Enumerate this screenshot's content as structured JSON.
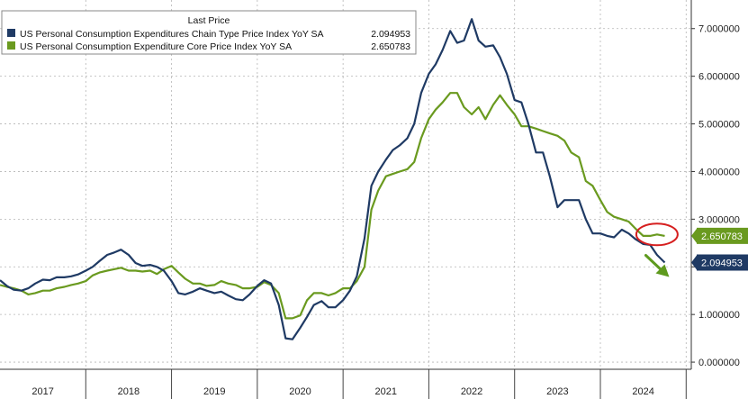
{
  "chart_data": {
    "type": "line",
    "legend": {
      "header": "Last Price",
      "placement": "top-left"
    },
    "series": [
      {
        "name": "US Personal Consumption Expenditures Chain Type Price Index YoY SA",
        "last_value": "2.094953",
        "color": "#1f3a64",
        "points": [
          [
            2016.92,
            1.72
          ],
          [
            2017.0,
            1.6
          ],
          [
            2017.08,
            1.52
          ],
          [
            2017.17,
            1.5
          ],
          [
            2017.25,
            1.55
          ],
          [
            2017.33,
            1.65
          ],
          [
            2017.42,
            1.73
          ],
          [
            2017.5,
            1.72
          ],
          [
            2017.58,
            1.78
          ],
          [
            2017.67,
            1.78
          ],
          [
            2017.75,
            1.8
          ],
          [
            2017.83,
            1.84
          ],
          [
            2017.92,
            1.92
          ],
          [
            2018.0,
            2.0
          ],
          [
            2018.08,
            2.12
          ],
          [
            2018.17,
            2.25
          ],
          [
            2018.25,
            2.3
          ],
          [
            2018.33,
            2.36
          ],
          [
            2018.42,
            2.25
          ],
          [
            2018.5,
            2.08
          ],
          [
            2018.58,
            2.02
          ],
          [
            2018.67,
            2.04
          ],
          [
            2018.75,
            2.0
          ],
          [
            2018.83,
            1.92
          ],
          [
            2018.92,
            1.7
          ],
          [
            2019.0,
            1.45
          ],
          [
            2019.08,
            1.42
          ],
          [
            2019.17,
            1.48
          ],
          [
            2019.25,
            1.55
          ],
          [
            2019.33,
            1.5
          ],
          [
            2019.42,
            1.45
          ],
          [
            2019.5,
            1.48
          ],
          [
            2019.58,
            1.4
          ],
          [
            2019.67,
            1.32
          ],
          [
            2019.75,
            1.3
          ],
          [
            2019.83,
            1.42
          ],
          [
            2019.92,
            1.6
          ],
          [
            2020.0,
            1.72
          ],
          [
            2020.08,
            1.65
          ],
          [
            2020.17,
            1.2
          ],
          [
            2020.25,
            0.5
          ],
          [
            2020.33,
            0.48
          ],
          [
            2020.42,
            0.72
          ],
          [
            2020.5,
            0.95
          ],
          [
            2020.58,
            1.2
          ],
          [
            2020.67,
            1.28
          ],
          [
            2020.75,
            1.15
          ],
          [
            2020.83,
            1.15
          ],
          [
            2020.92,
            1.3
          ],
          [
            2021.0,
            1.5
          ],
          [
            2021.08,
            1.8
          ],
          [
            2021.17,
            2.6
          ],
          [
            2021.25,
            3.7
          ],
          [
            2021.33,
            4.0
          ],
          [
            2021.42,
            4.25
          ],
          [
            2021.5,
            4.45
          ],
          [
            2021.58,
            4.55
          ],
          [
            2021.67,
            4.7
          ],
          [
            2021.75,
            5.0
          ],
          [
            2021.83,
            5.65
          ],
          [
            2021.92,
            6.05
          ],
          [
            2022.0,
            6.25
          ],
          [
            2022.08,
            6.55
          ],
          [
            2022.17,
            6.95
          ],
          [
            2022.25,
            6.7
          ],
          [
            2022.33,
            6.75
          ],
          [
            2022.42,
            7.2
          ],
          [
            2022.5,
            6.75
          ],
          [
            2022.58,
            6.62
          ],
          [
            2022.67,
            6.65
          ],
          [
            2022.75,
            6.4
          ],
          [
            2022.83,
            6.05
          ],
          [
            2022.92,
            5.5
          ],
          [
            2023.0,
            5.45
          ],
          [
            2023.08,
            5.0
          ],
          [
            2023.17,
            4.4
          ],
          [
            2023.25,
            4.4
          ],
          [
            2023.33,
            3.9
          ],
          [
            2023.42,
            3.25
          ],
          [
            2023.5,
            3.4
          ],
          [
            2023.58,
            3.4
          ],
          [
            2023.67,
            3.4
          ],
          [
            2023.75,
            3.0
          ],
          [
            2023.83,
            2.7
          ],
          [
            2023.92,
            2.7
          ],
          [
            2024.0,
            2.65
          ],
          [
            2024.08,
            2.62
          ],
          [
            2024.17,
            2.78
          ],
          [
            2024.25,
            2.7
          ],
          [
            2024.33,
            2.58
          ],
          [
            2024.42,
            2.48
          ],
          [
            2024.5,
            2.46
          ],
          [
            2024.58,
            2.25
          ],
          [
            2024.67,
            2.09
          ]
        ]
      },
      {
        "name": "US Personal Consumption Expenditure Core Price Index YoY SA",
        "last_value": "2.650783",
        "color": "#6a9a1f",
        "points": [
          [
            2016.92,
            1.62
          ],
          [
            2017.0,
            1.58
          ],
          [
            2017.08,
            1.55
          ],
          [
            2017.17,
            1.5
          ],
          [
            2017.25,
            1.42
          ],
          [
            2017.33,
            1.45
          ],
          [
            2017.42,
            1.5
          ],
          [
            2017.5,
            1.5
          ],
          [
            2017.58,
            1.55
          ],
          [
            2017.67,
            1.58
          ],
          [
            2017.75,
            1.62
          ],
          [
            2017.83,
            1.65
          ],
          [
            2017.92,
            1.7
          ],
          [
            2018.0,
            1.82
          ],
          [
            2018.08,
            1.88
          ],
          [
            2018.17,
            1.92
          ],
          [
            2018.25,
            1.95
          ],
          [
            2018.33,
            1.98
          ],
          [
            2018.42,
            1.92
          ],
          [
            2018.5,
            1.92
          ],
          [
            2018.58,
            1.9
          ],
          [
            2018.67,
            1.92
          ],
          [
            2018.75,
            1.85
          ],
          [
            2018.83,
            1.95
          ],
          [
            2018.92,
            2.02
          ],
          [
            2019.0,
            1.88
          ],
          [
            2019.08,
            1.75
          ],
          [
            2019.17,
            1.65
          ],
          [
            2019.25,
            1.65
          ],
          [
            2019.33,
            1.6
          ],
          [
            2019.42,
            1.62
          ],
          [
            2019.5,
            1.7
          ],
          [
            2019.58,
            1.65
          ],
          [
            2019.67,
            1.62
          ],
          [
            2019.75,
            1.55
          ],
          [
            2019.83,
            1.55
          ],
          [
            2019.92,
            1.58
          ],
          [
            2020.0,
            1.68
          ],
          [
            2020.08,
            1.62
          ],
          [
            2020.17,
            1.45
          ],
          [
            2020.25,
            0.92
          ],
          [
            2020.33,
            0.92
          ],
          [
            2020.42,
            0.98
          ],
          [
            2020.5,
            1.3
          ],
          [
            2020.58,
            1.45
          ],
          [
            2020.67,
            1.45
          ],
          [
            2020.75,
            1.4
          ],
          [
            2020.83,
            1.45
          ],
          [
            2020.92,
            1.55
          ],
          [
            2021.0,
            1.55
          ],
          [
            2021.08,
            1.7
          ],
          [
            2021.17,
            2.0
          ],
          [
            2021.25,
            3.2
          ],
          [
            2021.33,
            3.6
          ],
          [
            2021.42,
            3.9
          ],
          [
            2021.5,
            3.95
          ],
          [
            2021.58,
            4.0
          ],
          [
            2021.67,
            4.05
          ],
          [
            2021.75,
            4.2
          ],
          [
            2021.83,
            4.7
          ],
          [
            2021.92,
            5.1
          ],
          [
            2022.0,
            5.3
          ],
          [
            2022.08,
            5.45
          ],
          [
            2022.17,
            5.65
          ],
          [
            2022.25,
            5.65
          ],
          [
            2022.33,
            5.35
          ],
          [
            2022.42,
            5.2
          ],
          [
            2022.5,
            5.35
          ],
          [
            2022.58,
            5.1
          ],
          [
            2022.67,
            5.4
          ],
          [
            2022.75,
            5.6
          ],
          [
            2022.83,
            5.4
          ],
          [
            2022.92,
            5.2
          ],
          [
            2023.0,
            4.95
          ],
          [
            2023.08,
            4.95
          ],
          [
            2023.17,
            4.9
          ],
          [
            2023.25,
            4.85
          ],
          [
            2023.33,
            4.8
          ],
          [
            2023.42,
            4.75
          ],
          [
            2023.5,
            4.65
          ],
          [
            2023.58,
            4.4
          ],
          [
            2023.67,
            4.3
          ],
          [
            2023.75,
            3.8
          ],
          [
            2023.83,
            3.7
          ],
          [
            2023.92,
            3.4
          ],
          [
            2024.0,
            3.15
          ],
          [
            2024.08,
            3.05
          ],
          [
            2024.17,
            3.0
          ],
          [
            2024.25,
            2.95
          ],
          [
            2024.33,
            2.8
          ],
          [
            2024.42,
            2.65
          ],
          [
            2024.5,
            2.65
          ],
          [
            2024.58,
            2.68
          ],
          [
            2024.67,
            2.65
          ]
        ]
      }
    ],
    "x_tick_labels": [
      "2017",
      "2018",
      "2019",
      "2020",
      "2021",
      "2022",
      "2023",
      "2024"
    ],
    "y_tick_labels": [
      "0.000000",
      "1.000000",
      "2.000000",
      "3.000000",
      "4.000000",
      "5.000000",
      "6.000000",
      "7.000000"
    ],
    "y_ticks": [
      0,
      1,
      2,
      3,
      4,
      5,
      6,
      7
    ],
    "xlim": [
      2016.92,
      2024.98
    ],
    "ylim": [
      -0.15,
      7.6
    ],
    "grid": true,
    "annotations": {
      "highlight_circle": "red",
      "trend_arrow": "down"
    }
  }
}
